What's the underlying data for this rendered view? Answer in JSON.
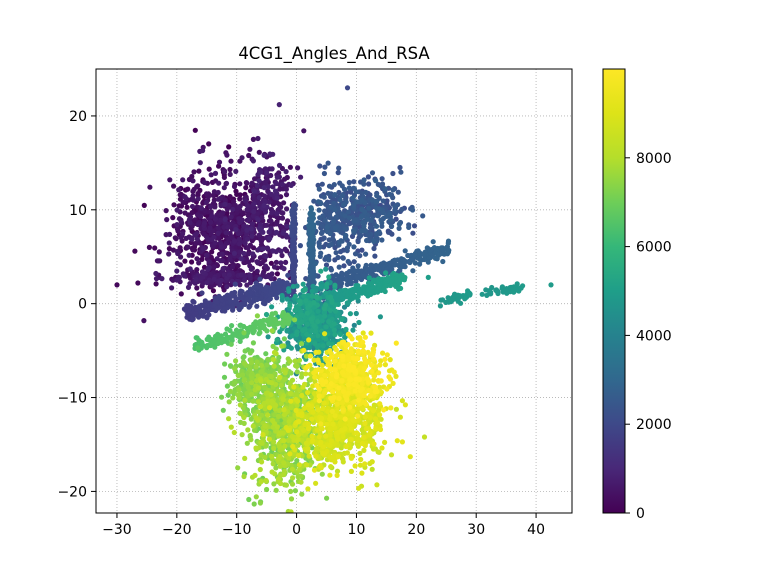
{
  "chart_data": {
    "type": "scatter",
    "title": "4CG1_Angles_And_RSA",
    "xlabel": "",
    "ylabel": "",
    "xlim": [
      -33.5,
      46
    ],
    "ylim": [
      -22.3,
      25
    ],
    "xticks": [
      -30,
      -20,
      -10,
      0,
      10,
      20,
      30,
      40
    ],
    "yticks": [
      -20,
      -10,
      0,
      10,
      20
    ],
    "grid": true,
    "grid_style": "dotted",
    "colormap": "viridis",
    "colorbar": {
      "range": [
        0,
        10000
      ],
      "ticks": [
        0,
        2000,
        4000,
        6000,
        8000
      ],
      "tick_labels": [
        "0",
        "2000",
        "4000",
        "6000",
        "8000"
      ]
    },
    "point_color_hex": {
      "low": "#440154",
      "mid": "#21918c",
      "high": "#fde725"
    },
    "clusters": [
      {
        "cx": -13,
        "cy": 8,
        "sx": 4.0,
        "sy": 3.0,
        "n": 700,
        "c0": 0,
        "c1": 700
      },
      {
        "cx": -5,
        "cy": 10,
        "sx": 2.5,
        "sy": 3.5,
        "n": 300,
        "c0": 300,
        "c1": 900
      },
      {
        "cx": -13,
        "cy": 2.8,
        "sx": 4.5,
        "sy": 0.4,
        "n": 200,
        "c0": 200,
        "c1": 800
      },
      {
        "cx": 11,
        "cy": 9.5,
        "sx": 3.5,
        "sy": 1.8,
        "n": 380,
        "c0": 2100,
        "c1": 2700
      },
      {
        "cx": 6,
        "cy": 8,
        "sx": 2.0,
        "sy": 3.0,
        "n": 150,
        "c0": 2200,
        "c1": 2600
      },
      {
        "cx": 3,
        "cy": -2,
        "sx": 2.5,
        "sy": 1.8,
        "n": 700,
        "c0": 4000,
        "c1": 5400
      },
      {
        "cx": -7,
        "cy": -8.5,
        "sx": 2.0,
        "sy": 1.8,
        "n": 300,
        "c0": 6900,
        "c1": 7600
      },
      {
        "cx": -2,
        "cy": -12.5,
        "sx": 3.0,
        "sy": 3.3,
        "n": 800,
        "c0": 7000,
        "c1": 8100
      },
      {
        "cx": 9,
        "cy": -7.5,
        "sx": 2.8,
        "sy": 1.8,
        "n": 600,
        "c0": 9100,
        "c1": 10000
      },
      {
        "cx": 7,
        "cy": -13,
        "sx": 3.8,
        "sy": 2.2,
        "n": 700,
        "c0": 8200,
        "c1": 9200
      }
    ],
    "streaks": [
      {
        "from": [
          -18.5,
          -0.9
        ],
        "to": [
          -1,
          1.8
        ],
        "w": 0.5,
        "n": 300,
        "c0": 1600,
        "c1": 2000
      },
      {
        "from": [
          5,
          2.0
        ],
        "to": [
          25.5,
          5.9
        ],
        "w": 0.4,
        "n": 300,
        "c0": 2500,
        "c1": 2900
      },
      {
        "from": [
          5,
          0.4
        ],
        "to": [
          18,
          2.7
        ],
        "w": 0.4,
        "n": 200,
        "c0": 4800,
        "c1": 5200
      },
      {
        "from": [
          -17,
          -4.5
        ],
        "to": [
          -1,
          -1.5
        ],
        "w": 0.4,
        "n": 160,
        "c0": 6400,
        "c1": 6800
      },
      {
        "from": [
          -0.5,
          1.0
        ],
        "to": [
          -0.5,
          10.5
        ],
        "w": 0.35,
        "n": 180,
        "c0": 1800,
        "c1": 2100
      },
      {
        "from": [
          2.5,
          1.0
        ],
        "to": [
          2.5,
          9.5
        ],
        "w": 0.5,
        "n": 200,
        "c0": 2600,
        "c1": 3000
      },
      {
        "from": [
          24,
          0.3
        ],
        "to": [
          29,
          0.9
        ],
        "w": 0.25,
        "n": 40,
        "c0": 4700,
        "c1": 4900
      },
      {
        "from": [
          31.5,
          1.0
        ],
        "to": [
          38,
          1.8
        ],
        "w": 0.25,
        "n": 40,
        "c0": 4700,
        "c1": 4900
      }
    ],
    "outliers": [
      {
        "x": 8.5,
        "y": 23,
        "c": 2000
      },
      {
        "x": -30,
        "y": 2.0,
        "c": 200
      },
      {
        "x": -27,
        "y": 5.6,
        "c": 200
      },
      {
        "x": -26.5,
        "y": 2.2,
        "c": 200
      },
      {
        "x": -25.5,
        "y": -1.8,
        "c": 400
      },
      {
        "x": -23,
        "y": 2.8,
        "c": 300
      },
      {
        "x": 42.5,
        "y": 2.0,
        "c": 4900
      },
      {
        "x": 31,
        "y": 1.0,
        "c": 4800
      },
      {
        "x": 14,
        "y": -1.4,
        "c": 4700
      },
      {
        "x": 19,
        "y": -16.3,
        "c": 9000
      },
      {
        "x": -5,
        "y": -19.8,
        "c": 7300
      },
      {
        "x": -1,
        "y": -20.0,
        "c": 7500
      },
      {
        "x": 22,
        "y": 2.8,
        "c": 5000
      },
      {
        "x": 28.5,
        "y": 0.8,
        "c": 4800
      },
      {
        "x": -16.5,
        "y": -4.7,
        "c": 6600
      },
      {
        "x": 12,
        "y": 13.5,
        "c": 2200
      }
    ]
  }
}
